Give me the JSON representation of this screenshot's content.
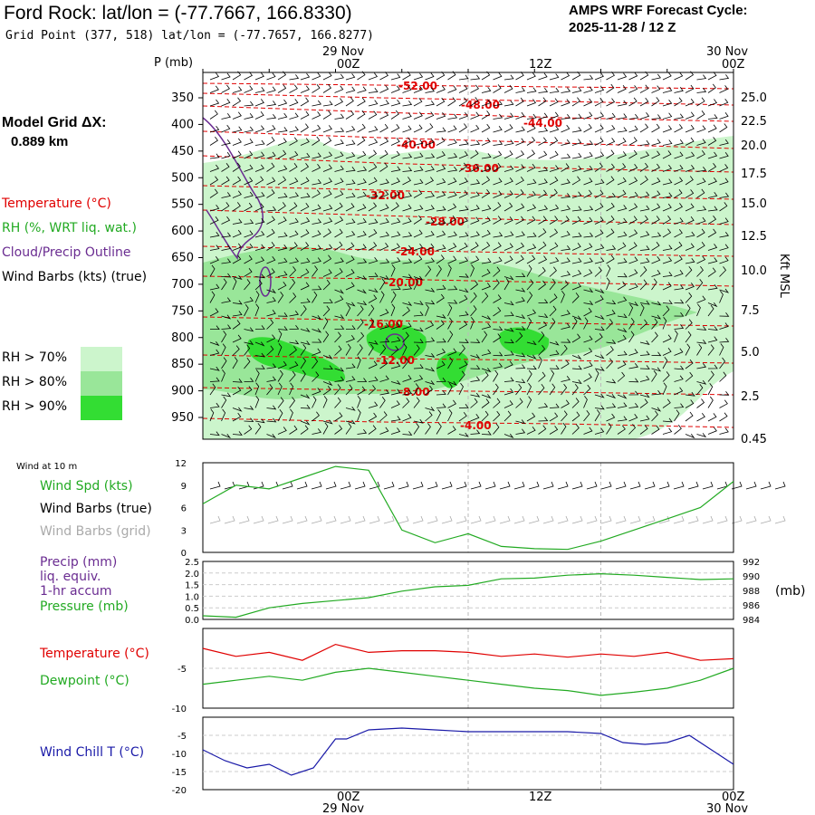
{
  "header": {
    "title": "Ford Rock:  lat/lon = (-77.7667, 166.8330)",
    "grid_point": "Grid Point (377, 518) lat/lon = (-77.7657, 166.8277)",
    "cycle_label": "AMPS WRF Forecast Cycle:",
    "cycle_value": "2025-11-28 / 12  Z"
  },
  "model_grid": {
    "label": "Model Grid ΔX:",
    "value": "0.889 km"
  },
  "time_axis": {
    "top_dates": [
      "29 Nov",
      "30 Nov"
    ],
    "hours": [
      "00Z",
      "12Z",
      "00Z"
    ],
    "bottom_dates": [
      "29 Nov",
      "30 Nov"
    ]
  },
  "colors": {
    "temp": "#e00000",
    "rh": "#22aa22",
    "cloud": "#6a2c91",
    "chill": "#1a1aa8",
    "grid_barb": "#aaaaaa",
    "rh70": "#ccf5cc",
    "rh80": "#99e699",
    "rh90": "#33dd33"
  },
  "legend": {
    "temperature": "Temperature (°C)",
    "rh": "RH (%, WRT liq. wat.)",
    "cloud": "Cloud/Precip Outline",
    "wind": "Wind Barbs (kts) (true)",
    "rh70": "RH > 70%",
    "rh80": "RH > 80%",
    "rh90": "RH > 90%"
  },
  "chart_data": [
    {
      "type": "heatmap",
      "panel": "cross-section",
      "ylabel_left": "P (mb)",
      "ylabel_right": "Kft MSL",
      "pressure_ticks": [
        350,
        400,
        450,
        500,
        550,
        600,
        650,
        700,
        750,
        800,
        850,
        900,
        950
      ],
      "height_ticks": [
        "25.0",
        "22.5",
        "20.0",
        "17.5",
        "15.0",
        "12.5",
        "10.0",
        "7.5",
        "5.0",
        "2.5",
        "0.45"
      ],
      "temperature_contours": [
        {
          "label": "-52.00"
        },
        {
          "label": "-48.00"
        },
        {
          "label": "-44.00"
        },
        {
          "label": "-40.00"
        },
        {
          "label": "-36.00"
        },
        {
          "label": "-32.00"
        },
        {
          "label": "-28.00"
        },
        {
          "label": "-24.00"
        },
        {
          "label": "-20.00"
        },
        {
          "label": "-16.00"
        },
        {
          "label": "-12.00"
        },
        {
          "label": "-8.00"
        },
        {
          "label": "-4.00"
        }
      ]
    },
    {
      "type": "line",
      "panel": "wind",
      "title": "Wind at 10 m",
      "series_labels": [
        "Wind Spd (kts)",
        "Wind Barbs (true)",
        "Wind Barbs (grid)"
      ],
      "yticks": [
        "12",
        "9",
        "6",
        "3",
        "0"
      ],
      "ylim": [
        0,
        12
      ],
      "x_hours": [
        0,
        3,
        6,
        9,
        12,
        15,
        18,
        21,
        24,
        27,
        30,
        33,
        36,
        39,
        42,
        45,
        48
      ],
      "series": [
        {
          "name": "Wind Spd (kts)",
          "values": [
            6.5,
            9,
            8.5,
            10,
            11.5,
            11,
            3,
            1.3,
            2.5,
            0.8,
            0.5,
            0.4,
            1.5,
            3,
            4.5,
            6,
            9.5
          ]
        }
      ]
    },
    {
      "type": "line",
      "panel": "precip-pressure",
      "series_labels": [
        "Precip (mm)",
        "liq. equiv.",
        "1-hr accum",
        "Pressure (mb)"
      ],
      "yticks_left": [
        "2.5",
        "2.0",
        "1.5",
        "1.0",
        "0.5",
        "0.0"
      ],
      "yticks_right": [
        "992",
        "990",
        "988",
        "986",
        "984"
      ],
      "unit_right": "(mb)",
      "ylim": [
        984,
        992
      ],
      "x_hours": [
        0,
        3,
        6,
        9,
        12,
        15,
        18,
        21,
        24,
        27,
        30,
        33,
        36,
        39,
        42,
        45,
        48
      ],
      "series": [
        {
          "name": "Pressure (mb)",
          "values": [
            984.5,
            984.3,
            985.6,
            986.2,
            986.6,
            987.0,
            987.9,
            988.5,
            988.7,
            989.6,
            989.7,
            990.1,
            990.3,
            990.1,
            989.8,
            989.5,
            989.6
          ]
        }
      ]
    },
    {
      "type": "line",
      "panel": "temperature",
      "series_labels": [
        "Temperature (°C)",
        "Dewpoint (°C)"
      ],
      "yticks": [
        "-5",
        "-10"
      ],
      "ylim": [
        -10,
        0
      ],
      "x_hours": [
        0,
        3,
        6,
        9,
        12,
        15,
        18,
        21,
        24,
        27,
        30,
        33,
        36,
        39,
        42,
        45,
        48
      ],
      "series": [
        {
          "name": "Temperature (°C)",
          "values": [
            -2.5,
            -3.5,
            -3,
            -4,
            -2,
            -3,
            -2.8,
            -2.8,
            -3,
            -3.5,
            -3.2,
            -3.6,
            -3.2,
            -3.5,
            -3,
            -4,
            -3.8
          ]
        },
        {
          "name": "Dewpoint (°C)",
          "values": [
            -7,
            -6.5,
            -6,
            -6.5,
            -5.5,
            -5,
            -5.5,
            -6,
            -6.5,
            -7,
            -7.5,
            -7.8,
            -8.4,
            -8,
            -7.5,
            -6.5,
            -5
          ]
        }
      ]
    },
    {
      "type": "line",
      "panel": "wind-chill",
      "series_labels": [
        "Wind Chill T (°C)"
      ],
      "yticks": [
        "-5",
        "-10",
        "-15",
        "-20"
      ],
      "ylim": [
        -20,
        0
      ],
      "x_hours": [
        0,
        2,
        4,
        6,
        8,
        10,
        12,
        13,
        15,
        18,
        21,
        24,
        27,
        30,
        33,
        36,
        38,
        40,
        42,
        44,
        46,
        48
      ],
      "series": [
        {
          "name": "Wind Chill T (°C)",
          "values": [
            -9,
            -12,
            -14,
            -13,
            -16,
            -14,
            -6,
            -6,
            -3.5,
            -3,
            -3.5,
            -4,
            -4,
            -4,
            -4,
            -4.5,
            -7,
            -7.5,
            -7,
            -5,
            -9,
            -13
          ]
        }
      ]
    }
  ]
}
